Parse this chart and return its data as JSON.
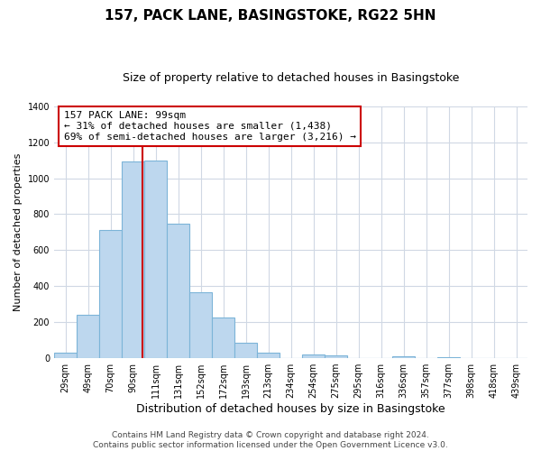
{
  "title": "157, PACK LANE, BASINGSTOKE, RG22 5HN",
  "subtitle": "Size of property relative to detached houses in Basingstoke",
  "xlabel": "Distribution of detached houses by size in Basingstoke",
  "ylabel": "Number of detached properties",
  "categories": [
    "29sqm",
    "49sqm",
    "70sqm",
    "90sqm",
    "111sqm",
    "131sqm",
    "152sqm",
    "172sqm",
    "193sqm",
    "213sqm",
    "234sqm",
    "254sqm",
    "275sqm",
    "295sqm",
    "316sqm",
    "336sqm",
    "357sqm",
    "377sqm",
    "398sqm",
    "418sqm",
    "439sqm"
  ],
  "values": [
    30,
    240,
    710,
    1095,
    1100,
    748,
    365,
    225,
    85,
    30,
    0,
    20,
    15,
    0,
    0,
    8,
    0,
    5,
    0,
    0,
    0
  ],
  "bar_color": "#bdd7ee",
  "bar_edge_color": "#7cb4d8",
  "ylim": [
    0,
    1400
  ],
  "yticks": [
    0,
    200,
    400,
    600,
    800,
    1000,
    1200,
    1400
  ],
  "property_label": "157 PACK LANE: 99sqm",
  "annotation_line1": "← 31% of detached houses are smaller (1,438)",
  "annotation_line2": "69% of semi-detached houses are larger (3,216) →",
  "annotation_box_color": "#ffffff",
  "annotation_box_edge_color": "#cc0000",
  "red_line_color": "#cc0000",
  "grid_color": "#d0d8e4",
  "background_color": "#ffffff",
  "footer_line1": "Contains HM Land Registry data © Crown copyright and database right 2024.",
  "footer_line2": "Contains public sector information licensed under the Open Government Licence v3.0.",
  "title_fontsize": 11,
  "subtitle_fontsize": 9,
  "xlabel_fontsize": 9,
  "ylabel_fontsize": 8,
  "tick_fontsize": 7,
  "annotation_fontsize": 8,
  "footer_fontsize": 6.5
}
